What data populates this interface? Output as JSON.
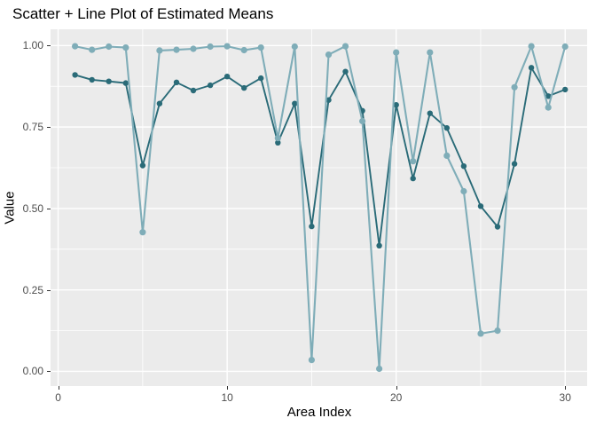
{
  "chart_data": {
    "type": "line",
    "title": "Scatter + Line Plot of Estimated Means",
    "xlabel": "Area Index",
    "ylabel": "Value",
    "x": [
      1,
      2,
      3,
      4,
      5,
      6,
      7,
      8,
      9,
      10,
      11,
      12,
      13,
      14,
      15,
      16,
      17,
      18,
      19,
      20,
      21,
      22,
      23,
      24,
      25,
      26,
      27,
      28,
      29,
      30
    ],
    "series": [
      {
        "name": "dark-teal-estimates",
        "color": "#2a6b78",
        "values": [
          0.91,
          0.895,
          0.89,
          0.885,
          0.632,
          0.822,
          0.887,
          0.862,
          0.878,
          0.905,
          0.87,
          0.9,
          0.702,
          0.822,
          0.445,
          0.833,
          0.92,
          0.8,
          0.386,
          0.818,
          0.592,
          0.792,
          0.747,
          0.63,
          0.507,
          0.444,
          0.637,
          0.932,
          0.845,
          0.865
        ]
      },
      {
        "name": "light-teal-estimates",
        "color": "#7fadb8",
        "values": [
          0.998,
          0.987,
          0.997,
          0.994,
          0.427,
          0.985,
          0.987,
          0.99,
          0.997,
          0.998,
          0.986,
          0.994,
          0.716,
          0.997,
          0.035,
          0.972,
          0.998,
          0.768,
          0.008,
          0.979,
          0.645,
          0.979,
          0.662,
          0.553,
          0.116,
          0.125,
          0.872,
          0.998,
          0.81,
          0.997
        ]
      }
    ],
    "x_ticks": [
      {
        "value": 0,
        "label": "0"
      },
      {
        "value": 10,
        "label": "10"
      },
      {
        "value": 20,
        "label": "20"
      },
      {
        "value": 30,
        "label": "30"
      }
    ],
    "y_ticks": [
      {
        "value": 0.0,
        "label": "0.00"
      },
      {
        "value": 0.25,
        "label": "0.25"
      },
      {
        "value": 0.5,
        "label": "0.50"
      },
      {
        "value": 0.75,
        "label": "0.75"
      },
      {
        "value": 1.0,
        "label": "1.00"
      }
    ],
    "x_minor": [
      5,
      15,
      25
    ],
    "y_minor": [
      0.125,
      0.375,
      0.625,
      0.875
    ],
    "xlim": [
      -0.45,
      31.3
    ],
    "ylim": [
      -0.045,
      1.05
    ],
    "legend": "none",
    "grid": true,
    "panel_background": "#ebebeb",
    "grid_color": "#ffffff",
    "tick_color": "#333333",
    "tick_label_color": "#4d4d4d"
  }
}
